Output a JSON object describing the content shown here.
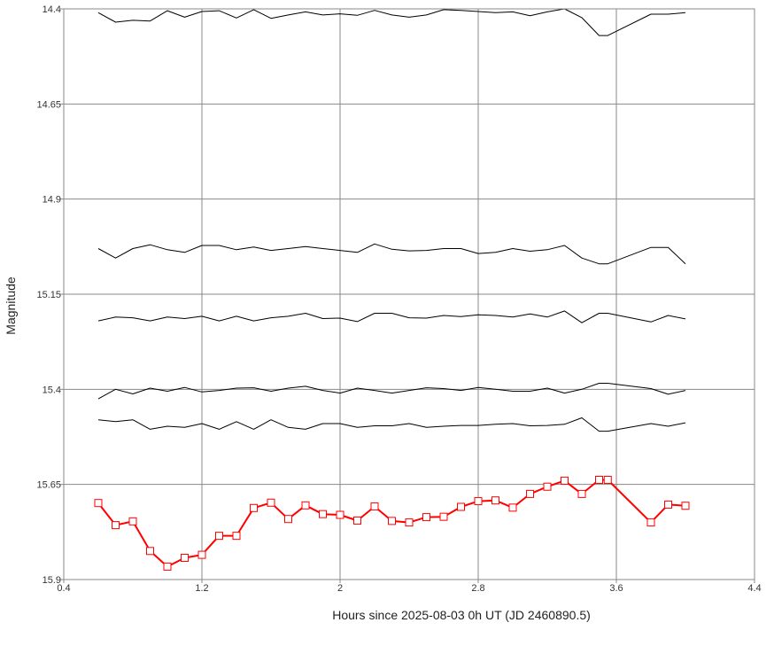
{
  "chart_data": {
    "type": "line",
    "title": "",
    "xlabel": "Hours since 2025-08-03 0h UT (JD 2460890.5)",
    "ylabel": "Magnitude",
    "xlim": [
      0.4,
      4.4
    ],
    "ylim": [
      14.4,
      15.9
    ],
    "y_inverted": true,
    "grid": true,
    "xticks": [
      0.4,
      1.2,
      2,
      2.8,
      3.6,
      4.4
    ],
    "xtick_labels": [
      "0.4",
      "1.2",
      "2",
      "2.8",
      "3.6",
      "4.4"
    ],
    "yticks": [
      14.4,
      14.65,
      14.9,
      15.15,
      15.4,
      15.65,
      15.9
    ],
    "ytick_labels": [
      "14.4",
      "14.65",
      "14.9",
      "15.15",
      "15.4",
      "15.65",
      "15.9"
    ],
    "x": [
      0.6,
      0.7,
      0.8,
      0.9,
      1.0,
      1.1,
      1.2,
      1.3,
      1.4,
      1.5,
      1.6,
      1.7,
      1.8,
      1.9,
      2.0,
      2.1,
      2.2,
      2.3,
      2.4,
      2.5,
      2.6,
      2.7,
      2.8,
      2.9,
      3.0,
      3.1,
      3.2,
      3.3,
      3.4,
      3.5,
      3.55,
      3.8,
      3.9,
      4.0
    ],
    "series": [
      {
        "color": "#000000",
        "style": "line",
        "values": [
          14.41,
          14.435,
          14.43,
          14.432,
          14.405,
          14.422,
          14.407,
          14.405,
          14.424,
          14.402,
          14.425,
          14.416,
          14.408,
          14.416,
          14.413,
          14.417,
          14.404,
          14.416,
          14.422,
          14.416,
          14.402,
          14.404,
          14.407,
          14.41,
          14.408,
          14.418,
          14.408,
          14.4,
          14.423,
          14.47,
          14.47,
          14.414,
          14.414,
          14.41
        ]
      },
      {
        "color": "#000000",
        "style": "line",
        "values": [
          15.03,
          15.055,
          15.03,
          15.02,
          15.033,
          15.04,
          15.022,
          15.022,
          15.033,
          15.026,
          15.035,
          15.03,
          15.025,
          15.03,
          15.035,
          15.04,
          15.018,
          15.032,
          15.036,
          15.035,
          15.03,
          15.03,
          15.043,
          15.04,
          15.03,
          15.037,
          15.033,
          15.022,
          15.055,
          15.07,
          15.07,
          15.027,
          15.027,
          15.07
        ]
      },
      {
        "color": "#000000",
        "style": "line",
        "values": [
          15.22,
          15.21,
          15.212,
          15.22,
          15.21,
          15.214,
          15.208,
          15.22,
          15.208,
          15.22,
          15.212,
          15.208,
          15.2,
          15.214,
          15.213,
          15.222,
          15.2,
          15.2,
          15.212,
          15.213,
          15.206,
          15.209,
          15.204,
          15.206,
          15.21,
          15.202,
          15.21,
          15.194,
          15.225,
          15.2,
          15.2,
          15.223,
          15.206,
          15.215
        ]
      },
      {
        "color": "#000000",
        "style": "line",
        "values": [
          15.425,
          15.4,
          15.412,
          15.397,
          15.405,
          15.395,
          15.407,
          15.403,
          15.397,
          15.396,
          15.405,
          15.397,
          15.392,
          15.403,
          15.41,
          15.397,
          15.403,
          15.41,
          15.403,
          15.396,
          15.398,
          15.403,
          15.395,
          15.4,
          15.405,
          15.405,
          15.397,
          15.41,
          15.4,
          15.384,
          15.384,
          15.398,
          15.413,
          15.403
        ]
      },
      {
        "color": "#000000",
        "style": "line",
        "values": [
          15.48,
          15.485,
          15.48,
          15.505,
          15.497,
          15.5,
          15.49,
          15.505,
          15.485,
          15.505,
          15.48,
          15.5,
          15.505,
          15.49,
          15.49,
          15.5,
          15.496,
          15.496,
          15.49,
          15.5,
          15.497,
          15.495,
          15.495,
          15.492,
          15.49,
          15.496,
          15.495,
          15.492,
          15.475,
          15.51,
          15.51,
          15.49,
          15.497,
          15.488
        ]
      },
      {
        "color": "#ff0000",
        "style": "line-square-markers",
        "values": [
          15.699,
          15.757,
          15.747,
          15.825,
          15.866,
          15.843,
          15.835,
          15.785,
          15.785,
          15.712,
          15.698,
          15.741,
          15.705,
          15.728,
          15.73,
          15.745,
          15.708,
          15.746,
          15.75,
          15.736,
          15.735,
          15.709,
          15.694,
          15.692,
          15.711,
          15.675,
          15.656,
          15.64,
          15.675,
          15.638,
          15.638,
          15.75,
          15.703,
          15.706
        ]
      }
    ]
  }
}
